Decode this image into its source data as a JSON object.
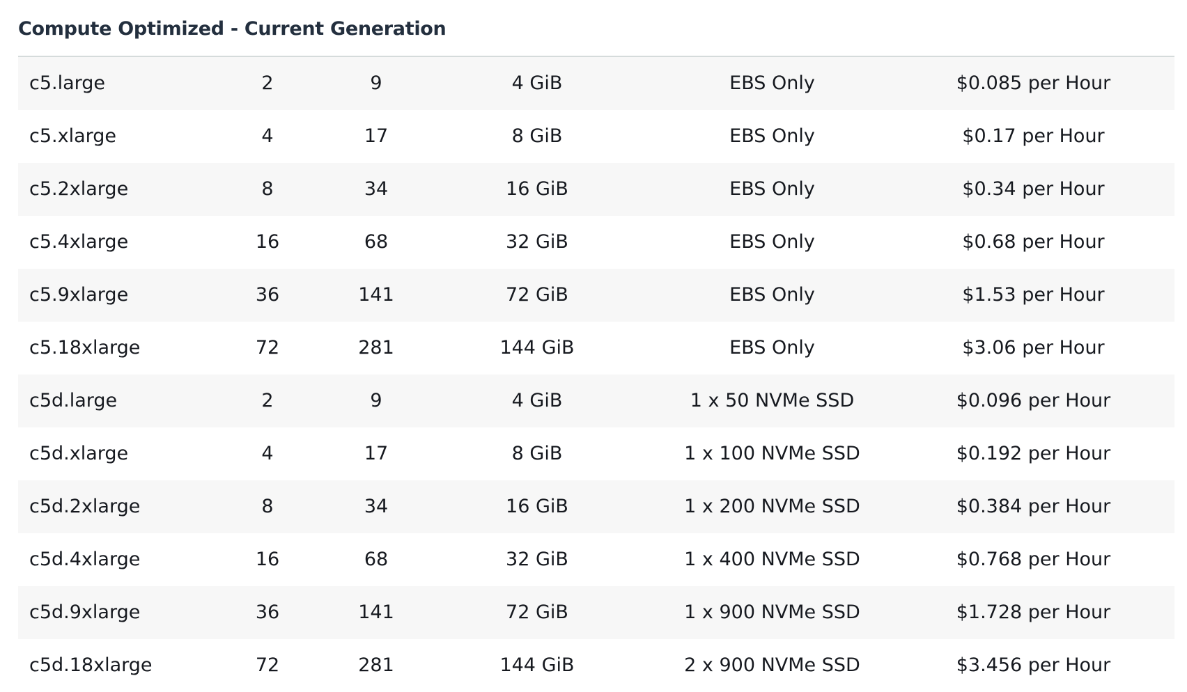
{
  "section": {
    "title": "Compute Optimized - Current Generation"
  },
  "table": {
    "rows": [
      [
        "c5.large",
        "2",
        "9",
        "4 GiB",
        "EBS Only",
        "$0.085 per Hour"
      ],
      [
        "c5.xlarge",
        "4",
        "17",
        "8 GiB",
        "EBS Only",
        "$0.17 per Hour"
      ],
      [
        "c5.2xlarge",
        "8",
        "34",
        "16 GiB",
        "EBS Only",
        "$0.34 per Hour"
      ],
      [
        "c5.4xlarge",
        "16",
        "68",
        "32 GiB",
        "EBS Only",
        "$0.68 per Hour"
      ],
      [
        "c5.9xlarge",
        "36",
        "141",
        "72 GiB",
        "EBS Only",
        "$1.53 per Hour"
      ],
      [
        "c5.18xlarge",
        "72",
        "281",
        "144 GiB",
        "EBS Only",
        "$3.06 per Hour"
      ],
      [
        "c5d.large",
        "2",
        "9",
        "4 GiB",
        "1 x 50 NVMe SSD",
        "$0.096 per Hour"
      ],
      [
        "c5d.xlarge",
        "4",
        "17",
        "8 GiB",
        "1 x 100 NVMe SSD",
        "$0.192 per Hour"
      ],
      [
        "c5d.2xlarge",
        "8",
        "34",
        "16 GiB",
        "1 x 200 NVMe SSD",
        "$0.384 per Hour"
      ],
      [
        "c5d.4xlarge",
        "16",
        "68",
        "32 GiB",
        "1 x 400 NVMe SSD",
        "$0.768 per Hour"
      ],
      [
        "c5d.9xlarge",
        "36",
        "141",
        "72 GiB",
        "1 x 900 NVMe SSD",
        "$1.728 per Hour"
      ],
      [
        "c5d.18xlarge",
        "72",
        "281",
        "144 GiB",
        "2 x 900 NVMe SSD",
        "$3.456 per Hour"
      ]
    ]
  }
}
